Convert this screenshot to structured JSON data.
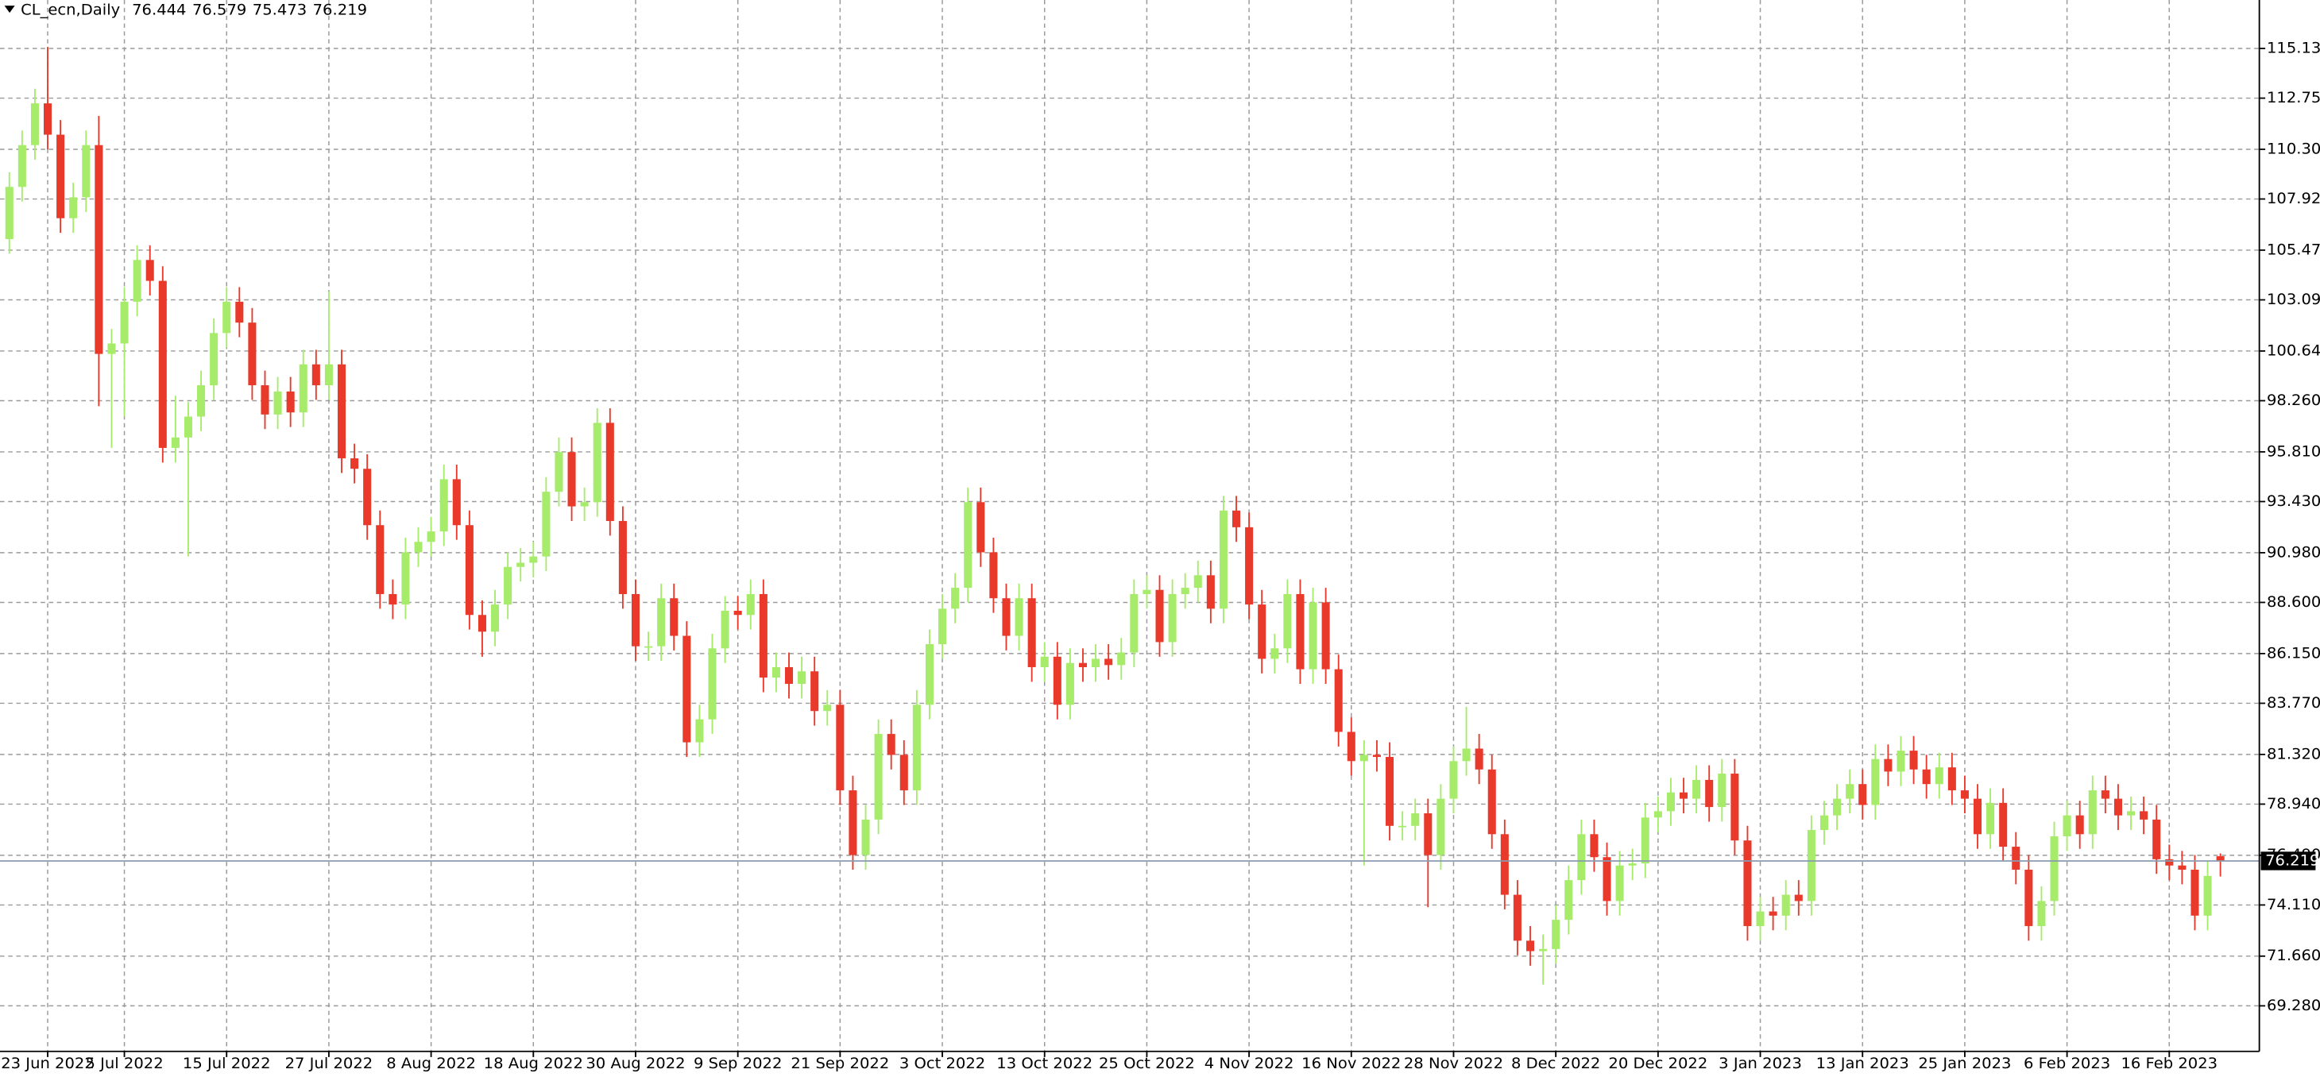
{
  "chart_data": {
    "type": "candlestick",
    "title": "CL_ecn,Daily",
    "categories": [
      null,
      null,
      null,
      "23 Jun 2022",
      null,
      null,
      null,
      null,
      null,
      "5 Jul 2022",
      null,
      null,
      null,
      null,
      null,
      null,
      null,
      "15 Jul 2022",
      null,
      null,
      null,
      null,
      null,
      null,
      null,
      "27 Jul 2022",
      null,
      null,
      null,
      null,
      null,
      null,
      null,
      "8 Aug 2022",
      null,
      null,
      null,
      null,
      null,
      null,
      null,
      "18 Aug 2022",
      null,
      null,
      null,
      null,
      null,
      null,
      null,
      "30 Aug 2022",
      null,
      null,
      null,
      null,
      null,
      null,
      null,
      "9 Sep 2022",
      null,
      null,
      null,
      null,
      null,
      null,
      null,
      "21 Sep 2022",
      null,
      null,
      null,
      null,
      null,
      null,
      null,
      "3 Oct 2022",
      null,
      null,
      null,
      null,
      null,
      null,
      null,
      "13 Oct 2022",
      null,
      null,
      null,
      null,
      null,
      null,
      null,
      "25 Oct 2022",
      null,
      null,
      null,
      null,
      null,
      null,
      null,
      "4 Nov 2022",
      null,
      null,
      null,
      null,
      null,
      null,
      null,
      "16 Nov 2022",
      null,
      null,
      null,
      null,
      null,
      null,
      null,
      "28 Nov 2022",
      null,
      null,
      null,
      null,
      null,
      null,
      null,
      "8 Dec 2022",
      null,
      null,
      null,
      null,
      null,
      null,
      null,
      "20 Dec 2022",
      null,
      null,
      null,
      null,
      null,
      null,
      null,
      "3 Jan 2023",
      null,
      null,
      null,
      null,
      null,
      null,
      null,
      "13 Jan 2023",
      null,
      null,
      null,
      null,
      null,
      null,
      null,
      "25 Jan 2023",
      null,
      null,
      null,
      null,
      null,
      null,
      null,
      "6 Feb 2023",
      null,
      null,
      null,
      null,
      null,
      null,
      null,
      "16 Feb 2023",
      null,
      null,
      null,
      null
    ],
    "open": [
      106,
      108.5,
      110.5,
      112.5,
      111,
      107,
      108,
      110.5,
      100.5,
      101,
      103,
      105,
      104,
      96,
      96.5,
      97.5,
      99,
      101.5,
      103,
      102,
      99,
      97.6,
      98.7,
      97.7,
      100,
      99,
      100,
      95.5,
      95,
      92.3,
      89,
      88.5,
      91,
      91.5,
      92,
      94.5,
      92.3,
      88,
      87.2,
      88.5,
      90.3,
      90.5,
      90.8,
      93.9,
      95.8,
      93.2,
      93.4,
      97.2,
      92.5,
      89,
      86.5,
      86.5,
      88.8,
      87,
      81.9,
      83,
      86.4,
      88.2,
      88,
      89,
      85,
      85.5,
      84.7,
      85.3,
      83.4,
      83.7,
      79.6,
      76.5,
      78.2,
      82.3,
      81.3,
      79.6,
      83.7,
      86.6,
      88.3,
      89.3,
      93.4,
      91,
      88.8,
      87,
      88.8,
      85.5,
      86,
      83.7,
      85.7,
      85.5,
      85.9,
      85.6,
      86.2,
      89,
      89.2,
      86.7,
      89,
      89.3,
      89.9,
      88.3,
      93,
      92.2,
      88.5,
      85.9,
      86.4,
      89,
      85.4,
      88.6,
      85.4,
      82.4,
      81,
      81.3,
      81.2,
      77.9,
      77.9,
      78.5,
      76.5,
      79.2,
      81,
      81.6,
      80.6,
      77.5,
      74.6,
      72.4,
      71.9,
      72,
      73.4,
      75.3,
      77.5,
      76.4,
      74.3,
      76,
      76.1,
      78.3,
      78.6,
      79.5,
      79.2,
      80.1,
      78.8,
      80.4,
      77.2,
      73.1,
      73.8,
      73.6,
      74.6,
      74.3,
      77.7,
      78.4,
      79.2,
      79.9,
      78.9,
      81.1,
      80.5,
      81.5,
      80.6,
      79.9,
      80.7,
      79.6,
      79.2,
      77.5,
      79,
      76.9,
      75.8,
      73.1,
      74.3,
      77.4,
      78.4,
      77.5,
      79.6,
      79.2,
      78.4,
      78.6,
      78.2,
      76.3,
      76,
      75.8,
      73.6,
      76.444
    ],
    "high": [
      109.2,
      111.2,
      113.2,
      115.2,
      111.7,
      108.7,
      111.2,
      111.9,
      101.7,
      103.7,
      105.7,
      105.7,
      104.7,
      98.5,
      98.2,
      99.7,
      102.2,
      103.7,
      103.7,
      102.7,
      99.7,
      99.4,
      99.4,
      100.7,
      100.7,
      103.5,
      100.7,
      96.2,
      95.7,
      93,
      89.7,
      91.7,
      92.2,
      92.7,
      95.2,
      95.2,
      93,
      88.7,
      89.2,
      91,
      91.2,
      91.5,
      94.6,
      96.5,
      96.5,
      94.1,
      97.9,
      97.9,
      93.2,
      89.7,
      87.2,
      89.5,
      89.5,
      87.7,
      83.7,
      87.1,
      88.9,
      88.9,
      89.7,
      89.7,
      86.2,
      86.2,
      86,
      86,
      84.4,
      84.4,
      80.3,
      78.9,
      83,
      83,
      82,
      84.4,
      87.3,
      89,
      90,
      94.1,
      94.1,
      91.7,
      89.5,
      89.5,
      89.5,
      86.7,
      86.7,
      86.4,
      86.4,
      86.6,
      86.6,
      86.9,
      89.7,
      89.9,
      89.9,
      89.7,
      90,
      90.6,
      90.6,
      93.7,
      93.7,
      92.9,
      89.2,
      87.1,
      89.7,
      89.7,
      89.3,
      89.3,
      86.1,
      83.1,
      82,
      82,
      81.9,
      78.6,
      79.2,
      79.2,
      79.9,
      81.7,
      83.6,
      82.3,
      81.3,
      78.2,
      75.3,
      73.1,
      72.7,
      74.1,
      76,
      78.2,
      78.2,
      77.1,
      76.7,
      76.8,
      79,
      79.3,
      80.2,
      80.2,
      80.8,
      80.8,
      81.1,
      81.1,
      77.9,
      74.5,
      74.5,
      75.3,
      75.3,
      78.4,
      79.1,
      79.9,
      80.6,
      80.6,
      81.8,
      81.8,
      82.2,
      82.2,
      81.3,
      81.4,
      81.4,
      80.3,
      79.9,
      79.7,
      79.7,
      77.6,
      76.5,
      75,
      78.1,
      79.1,
      79.1,
      80.3,
      80.3,
      79.9,
      79.3,
      79.3,
      78.9,
      77,
      76.7,
      76.5,
      76.2,
      76.579
    ],
    "low": [
      105.3,
      107.8,
      109.8,
      110.3,
      106.3,
      106.3,
      107.3,
      98,
      96,
      97.5,
      102.3,
      103.3,
      95.3,
      95.3,
      90.8,
      96.8,
      98.3,
      100.8,
      101.3,
      98.3,
      96.9,
      96.9,
      97,
      97,
      98.3,
      98.3,
      94.8,
      94.3,
      91.6,
      88.3,
      87.8,
      87.8,
      90.3,
      90.8,
      91.3,
      91.6,
      87.3,
      86,
      86.5,
      87.8,
      89.6,
      89.8,
      90.1,
      93.2,
      92.5,
      92.5,
      92.7,
      91.8,
      88.3,
      85.8,
      85.8,
      85.8,
      86.3,
      81.2,
      81.2,
      82.3,
      85.7,
      87.3,
      87.3,
      84.3,
      84.3,
      84,
      84,
      82.7,
      82.7,
      78.9,
      75.8,
      75.8,
      77.5,
      80.6,
      78.9,
      78.9,
      83,
      85.9,
      87.6,
      88.6,
      90.3,
      88.1,
      86.3,
      86.3,
      84.8,
      84.8,
      83,
      83,
      84.8,
      84.8,
      84.9,
      84.9,
      85.5,
      88.3,
      86,
      86,
      88.3,
      88.6,
      87.6,
      87.6,
      91.5,
      87.8,
      85.2,
      85.2,
      85.7,
      84.7,
      84.7,
      84.7,
      81.7,
      80.3,
      76,
      80.5,
      77.2,
      77.2,
      77.2,
      74,
      75.8,
      78.5,
      80.3,
      79.9,
      76.8,
      73.9,
      71.7,
      71.2,
      70.3,
      71.3,
      72.7,
      74.6,
      75.7,
      73.6,
      73.6,
      75.3,
      75.4,
      77.6,
      77.9,
      78.5,
      78.5,
      78.1,
      78.1,
      76.5,
      72.4,
      72.4,
      72.9,
      72.9,
      73.6,
      73.6,
      77,
      77.7,
      78.5,
      78.2,
      78.2,
      79.8,
      79.8,
      79.9,
      79.2,
      79.2,
      78.9,
      78.5,
      76.8,
      76.8,
      76.2,
      75.1,
      72.4,
      72.4,
      73.6,
      76.7,
      76.8,
      76.8,
      78.5,
      77.7,
      77.7,
      77.5,
      75.6,
      75.3,
      75.1,
      72.9,
      72.9,
      75.473
    ],
    "close": [
      108.5,
      110.5,
      112.5,
      111,
      107,
      108,
      110.5,
      100.5,
      101,
      103,
      105,
      104,
      96,
      96.5,
      97.5,
      99,
      101.5,
      103,
      102,
      99,
      97.6,
      98.7,
      97.7,
      100,
      99,
      100,
      95.5,
      95,
      92.3,
      89,
      88.5,
      91,
      91.5,
      92,
      94.5,
      92.3,
      88,
      87.2,
      88.5,
      90.3,
      90.5,
      90.8,
      93.9,
      95.8,
      93.2,
      93.4,
      97.2,
      92.5,
      89,
      86.5,
      86.5,
      88.8,
      87,
      81.9,
      83,
      86.4,
      88.2,
      88,
      89,
      85,
      85.5,
      84.7,
      85.3,
      83.4,
      83.7,
      79.6,
      76.5,
      78.2,
      82.3,
      81.3,
      79.6,
      83.7,
      86.6,
      88.3,
      89.3,
      93.4,
      91,
      88.8,
      87,
      88.8,
      85.5,
      86,
      83.7,
      85.7,
      85.5,
      85.9,
      85.6,
      86.2,
      89,
      89.2,
      86.7,
      89,
      89.3,
      89.9,
      88.3,
      93,
      92.2,
      88.5,
      85.9,
      86.4,
      89,
      85.4,
      88.6,
      85.4,
      82.4,
      81,
      81.3,
      81.2,
      77.9,
      77.9,
      78.5,
      76.5,
      79.2,
      81,
      81.6,
      80.6,
      77.5,
      74.6,
      72.4,
      71.9,
      72,
      73.4,
      75.3,
      77.5,
      76.4,
      74.3,
      76,
      76.1,
      78.3,
      78.6,
      79.5,
      79.2,
      80.1,
      78.8,
      80.4,
      77.2,
      73.1,
      73.8,
      73.6,
      74.6,
      74.3,
      77.7,
      78.4,
      79.2,
      79.9,
      78.9,
      81.1,
      80.5,
      81.5,
      80.6,
      79.9,
      80.7,
      79.6,
      79.2,
      77.5,
      79,
      76.9,
      75.8,
      73.1,
      74.3,
      77.4,
      78.4,
      77.5,
      79.6,
      79.2,
      78.4,
      78.6,
      78.2,
      76.3,
      76,
      75.8,
      73.6,
      75.5,
      76.219
    ],
    "up_color": "#a6ec6a",
    "down_color": "#e8392a",
    "ylim": [
      67.1,
      117.45
    ],
    "yticks": [
      {
        "value": 115.13,
        "label": "115.130"
      },
      {
        "value": 112.75,
        "label": "112.750"
      },
      {
        "value": 110.3,
        "label": "110.300"
      },
      {
        "value": 107.92,
        "label": "107.920"
      },
      {
        "value": 105.47,
        "label": "105.470"
      },
      {
        "value": 103.09,
        "label": "103.090"
      },
      {
        "value": 100.64,
        "label": "100.640"
      },
      {
        "value": 98.26,
        "label": "98.260"
      },
      {
        "value": 95.81,
        "label": "95.810"
      },
      {
        "value": 93.43,
        "label": "93.430"
      },
      {
        "value": 90.98,
        "label": "90.980"
      },
      {
        "value": 88.6,
        "label": "88.600"
      },
      {
        "value": 86.15,
        "label": "86.150"
      },
      {
        "value": 83.77,
        "label": "83.770"
      },
      {
        "value": 81.32,
        "label": "81.320"
      },
      {
        "value": 78.94,
        "label": "78.940"
      },
      {
        "value": 76.49,
        "label": "76.490"
      },
      {
        "value": 74.11,
        "label": "74.110"
      },
      {
        "value": 71.66,
        "label": "71.660"
      },
      {
        "value": 69.28,
        "label": "69.280"
      }
    ],
    "grid": true
  }
}
